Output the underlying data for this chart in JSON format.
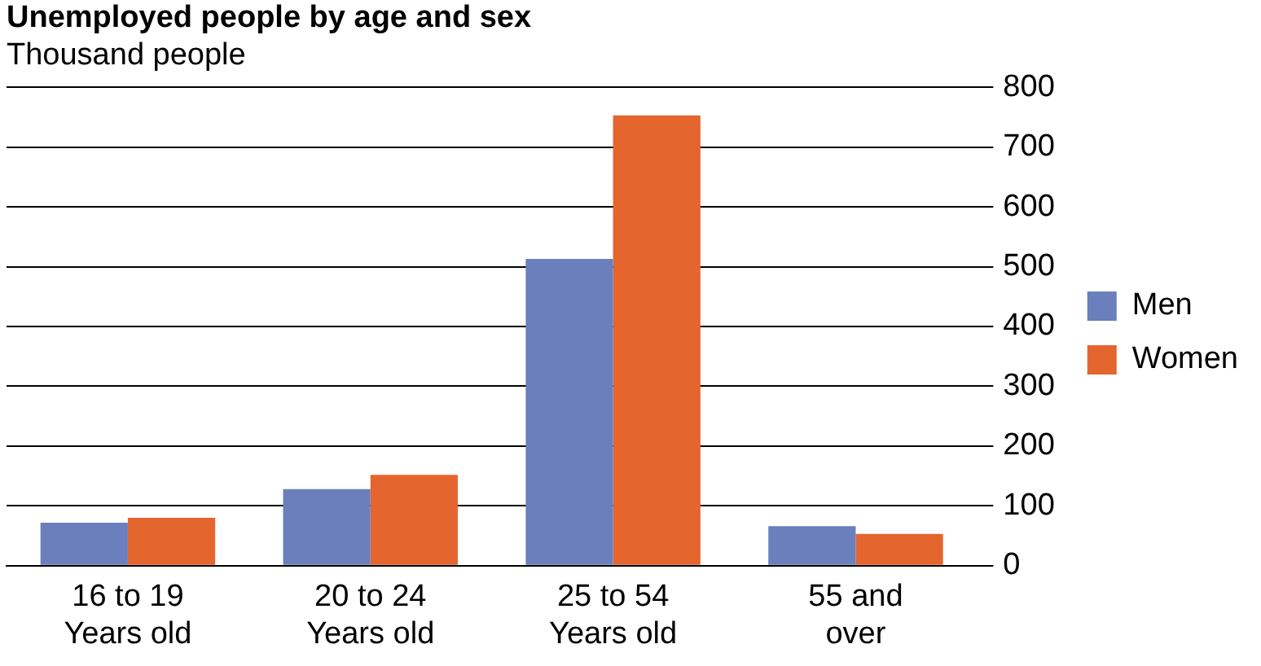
{
  "chart_data": {
    "type": "bar",
    "title": "Unemployed people by age and sex",
    "subtitle": "Thousand people",
    "categories": [
      "16 to 19 Years old",
      "20 to 24 Years old",
      "25 to 54 Years old",
      "55 and over"
    ],
    "series": [
      {
        "name": "Men",
        "color": "#6a7fbc",
        "values": [
          72,
          128,
          513,
          66
        ]
      },
      {
        "name": "Women",
        "color": "#e5652e",
        "values": [
          80,
          152,
          753,
          53
        ]
      }
    ],
    "ylim": [
      0,
      800
    ],
    "yticks": [
      0,
      100,
      200,
      300,
      400,
      500,
      600,
      700,
      800
    ],
    "grid": "y",
    "legend": "right"
  }
}
